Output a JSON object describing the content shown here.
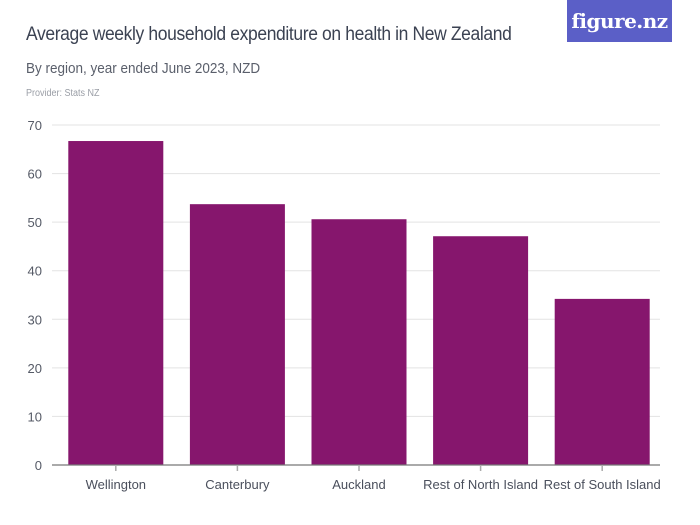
{
  "header": {
    "title": "Average weekly household expenditure on health in New Zealand",
    "subtitle": "By region, year ended June 2023, NZD",
    "provider": "Provider: Stats NZ",
    "logo_text": "figure.nz"
  },
  "colors": {
    "bar": "#86166d",
    "logo_bg": "#5b5fc7",
    "grid": "#e3e3e3",
    "axis": "#777777"
  },
  "chart_data": {
    "type": "bar",
    "title": "Average weekly household expenditure on health in New Zealand",
    "subtitle": "By region, year ended June 2023, NZD",
    "xlabel": "",
    "ylabel": "",
    "categories": [
      "Wellington",
      "Canterbury",
      "Auckland",
      "Rest of North Island",
      "Rest of South Island"
    ],
    "values": [
      66.7,
      53.7,
      50.6,
      47.1,
      34.2
    ],
    "ylim": [
      0,
      70
    ],
    "yticks": [
      "0",
      "10",
      "20",
      "30",
      "40",
      "50",
      "60",
      "70"
    ],
    "grid": true,
    "legend": "none"
  }
}
